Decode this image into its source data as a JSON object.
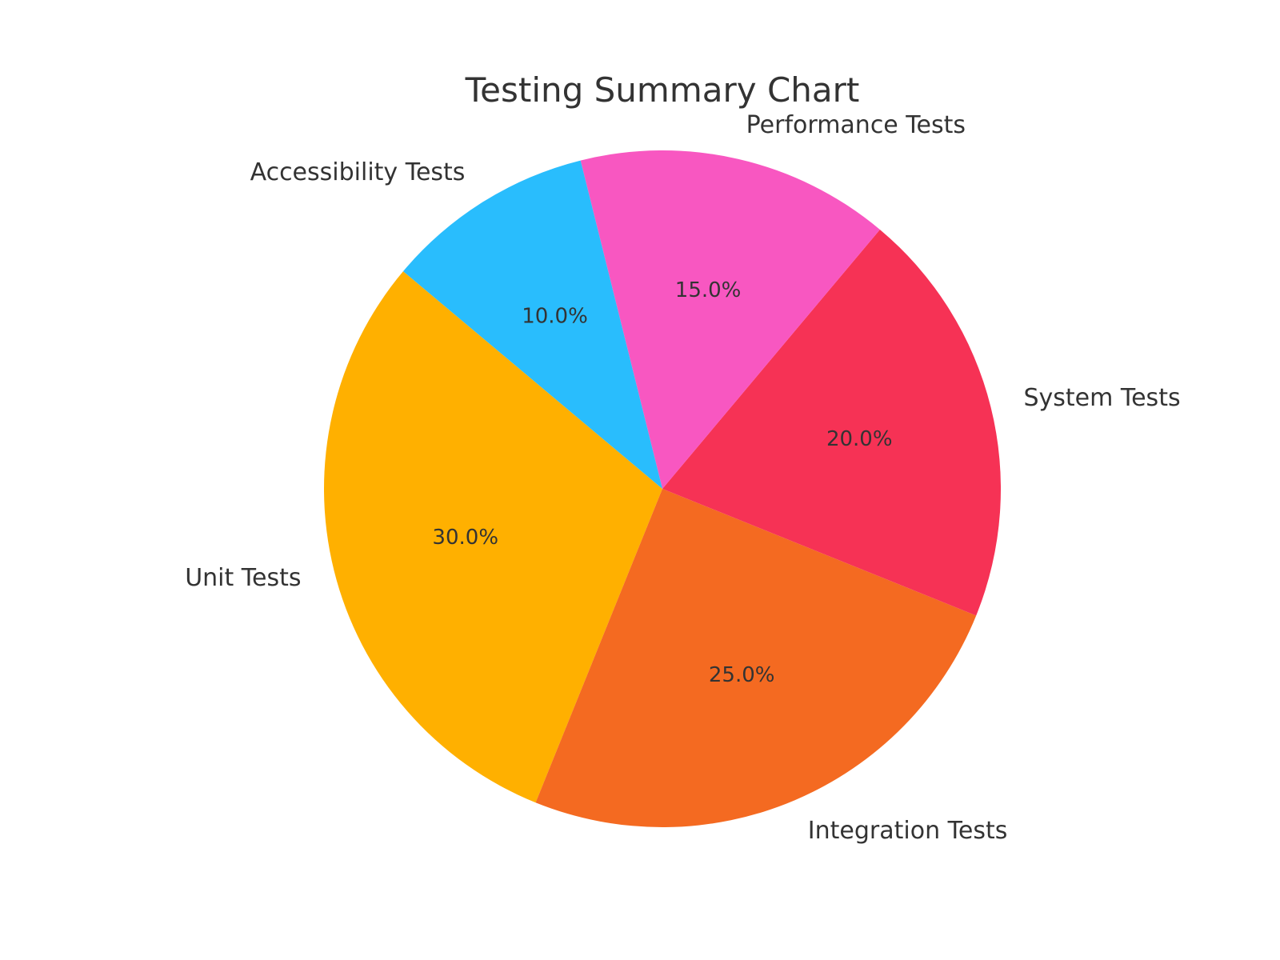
{
  "chart_data": {
    "type": "pie",
    "title": "Testing Summary Chart",
    "start_angle_deg": 140,
    "direction": "counterclockwise",
    "slices": [
      {
        "label": "Unit Tests",
        "value": 30.0,
        "pct_label": "30.0%",
        "color": "#FFB000"
      },
      {
        "label": "Integration Tests",
        "value": 25.0,
        "pct_label": "25.0%",
        "color": "#F46A21"
      },
      {
        "label": "System Tests",
        "value": 20.0,
        "pct_label": "20.0%",
        "color": "#F63255"
      },
      {
        "label": "Performance Tests",
        "value": 15.0,
        "pct_label": "15.0%",
        "color": "#F857C1"
      },
      {
        "label": "Accessibility Tests",
        "value": 10.0,
        "pct_label": "10.0%",
        "color": "#29BDFD"
      }
    ]
  }
}
